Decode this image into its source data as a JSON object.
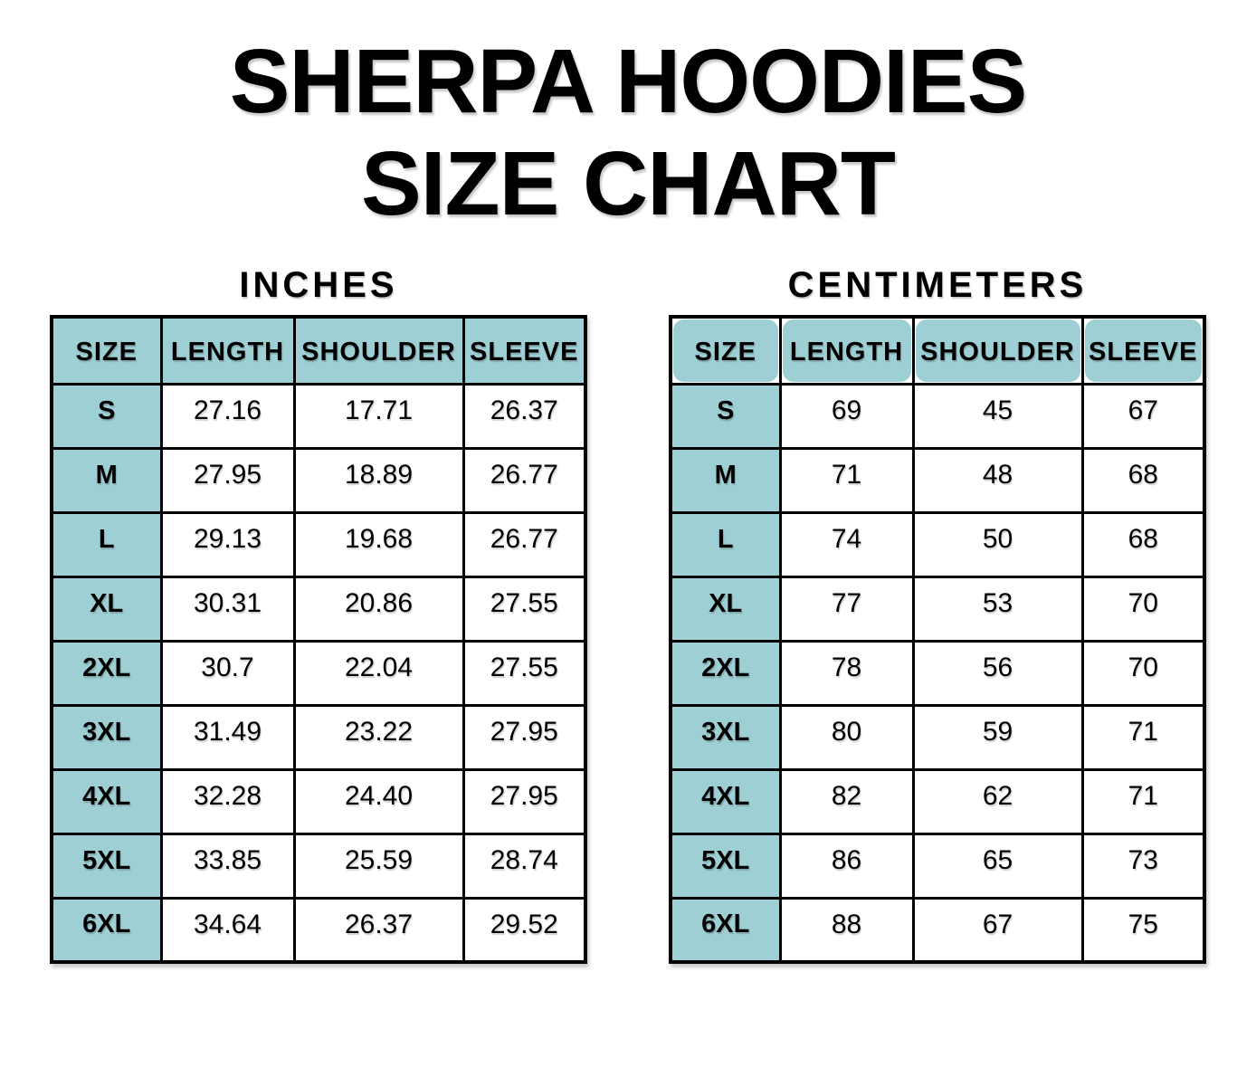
{
  "page_title": {
    "line1": "SHERPA HOODIES",
    "line2": "SIZE CHART"
  },
  "colors": {
    "header_fill": "#9ECFD4",
    "border": "#000000",
    "background": "#FFFFFF",
    "text": "#000000"
  },
  "chart_data": [
    {
      "type": "table",
      "title": "INCHES",
      "columns": [
        "SIZE",
        "LENGTH",
        "SHOULDER",
        "SLEEVE"
      ],
      "rows": [
        {
          "size": "S",
          "length": "27.16",
          "shoulder": "17.71",
          "sleeve": "26.37"
        },
        {
          "size": "M",
          "length": "27.95",
          "shoulder": "18.89",
          "sleeve": "26.77"
        },
        {
          "size": "L",
          "length": "29.13",
          "shoulder": "19.68",
          "sleeve": "26.77"
        },
        {
          "size": "XL",
          "length": "30.31",
          "shoulder": "20.86",
          "sleeve": "27.55"
        },
        {
          "size": "2XL",
          "length": "30.7",
          "shoulder": "22.04",
          "sleeve": "27.55"
        },
        {
          "size": "3XL",
          "length": "31.49",
          "shoulder": "23.22",
          "sleeve": "27.95"
        },
        {
          "size": "4XL",
          "length": "32.28",
          "shoulder": "24.40",
          "sleeve": "27.95"
        },
        {
          "size": "5XL",
          "length": "33.85",
          "shoulder": "25.59",
          "sleeve": "28.74"
        },
        {
          "size": "6XL",
          "length": "34.64",
          "shoulder": "26.37",
          "sleeve": "29.52"
        }
      ]
    },
    {
      "type": "table",
      "title": "CENTIMETERS",
      "columns": [
        "SIZE",
        "LENGTH",
        "SHOULDER",
        "SLEEVE"
      ],
      "rows": [
        {
          "size": "S",
          "length": "69",
          "shoulder": "45",
          "sleeve": "67"
        },
        {
          "size": "M",
          "length": "71",
          "shoulder": "48",
          "sleeve": "68"
        },
        {
          "size": "L",
          "length": "74",
          "shoulder": "50",
          "sleeve": "68"
        },
        {
          "size": "XL",
          "length": "77",
          "shoulder": "53",
          "sleeve": "70"
        },
        {
          "size": "2XL",
          "length": "78",
          "shoulder": "56",
          "sleeve": "70"
        },
        {
          "size": "3XL",
          "length": "80",
          "shoulder": "59",
          "sleeve": "71"
        },
        {
          "size": "4XL",
          "length": "82",
          "shoulder": "62",
          "sleeve": "71"
        },
        {
          "size": "5XL",
          "length": "86",
          "shoulder": "65",
          "sleeve": "73"
        },
        {
          "size": "6XL",
          "length": "88",
          "shoulder": "67",
          "sleeve": "75"
        }
      ]
    }
  ]
}
